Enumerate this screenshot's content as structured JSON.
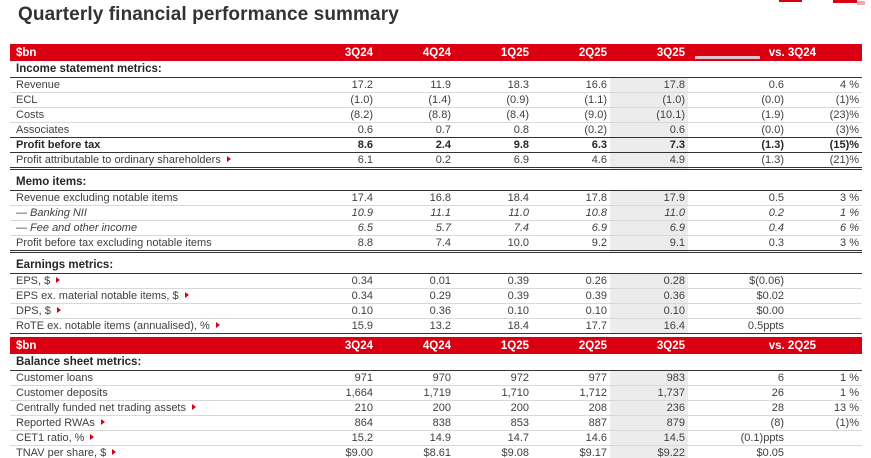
{
  "page": {
    "title": "Quarterly financial performance summary"
  },
  "colors": {
    "brand_red": "#DB0011",
    "header_text": "#FFFFFF",
    "column_highlight": "#ECECEC",
    "divider_gray": "#D9D9D9",
    "line_black": "#333333",
    "body_text": "#404040"
  },
  "tables": [
    {
      "id": "performance",
      "header": {
        "unit": "$bn",
        "quarters": [
          "3Q24",
          "4Q24",
          "1Q25",
          "2Q25",
          "3Q25"
        ],
        "vs": "vs. 3Q24"
      },
      "sections": [
        {
          "title": "Income statement metrics:",
          "rows": [
            {
              "label": "Revenue",
              "values": [
                "17.2",
                "11.9",
                "18.3",
                "16.6",
                "17.8"
              ],
              "delta": "0.6",
              "pct": "4 %",
              "divider": "gray"
            },
            {
              "label": "ECL",
              "values": [
                "(1.0)",
                "(1.4)",
                "(0.9)",
                "(1.1)",
                "(1.0)"
              ],
              "delta": "(0.0)",
              "pct": "(1)%",
              "divider": "gray"
            },
            {
              "label": "Costs",
              "values": [
                "(8.2)",
                "(8.8)",
                "(8.4)",
                "(9.0)",
                "(10.1)"
              ],
              "delta": "(1.9)",
              "pct": "(23)%",
              "divider": "gray"
            },
            {
              "label": "Associates",
              "values": [
                "0.6",
                "0.7",
                "0.8",
                "(0.2)",
                "0.6"
              ],
              "delta": "(0.0)",
              "pct": "(3)%",
              "divider": "black"
            },
            {
              "label": "Profit before tax",
              "bold": true,
              "values": [
                "8.6",
                "2.4",
                "9.8",
                "6.3",
                "7.3"
              ],
              "delta": "(1.3)",
              "pct": "(15)%",
              "divider": "black"
            },
            {
              "label": "Profit attributable to ordinary shareholders",
              "marker": true,
              "values": [
                "6.1",
                "0.2",
                "6.9",
                "4.6",
                "4.9"
              ],
              "delta": "(1.3)",
              "pct": "(21)%",
              "divider": "double"
            }
          ]
        },
        {
          "title": "Memo items:",
          "rows": [
            {
              "label": "Revenue excluding notable items",
              "values": [
                "17.4",
                "16.8",
                "18.4",
                "17.8",
                "17.9"
              ],
              "delta": "0.5",
              "pct": "3 %",
              "divider": "gray"
            },
            {
              "label": "— Banking NII",
              "italic": true,
              "values": [
                "10.9",
                "11.1",
                "11.0",
                "10.8",
                "11.0"
              ],
              "delta": "0.2",
              "pct": "1 %",
              "divider": "gray"
            },
            {
              "label": "— Fee and other income",
              "italic": true,
              "values": [
                "6.5",
                "5.7",
                "7.4",
                "6.9",
                "6.9"
              ],
              "delta": "0.4",
              "pct": "6 %",
              "divider": "gray"
            },
            {
              "label": "Profit before tax excluding notable items",
              "values": [
                "8.8",
                "7.4",
                "10.0",
                "9.2",
                "9.1"
              ],
              "delta": "0.3",
              "pct": "3 %",
              "divider": "double"
            }
          ]
        },
        {
          "title": "Earnings metrics:",
          "rows": [
            {
              "label": "EPS, $",
              "marker": true,
              "values": [
                "0.34",
                "0.01",
                "0.39",
                "0.26",
                "0.28"
              ],
              "delta": "$(0.06)",
              "pct": "",
              "divider": "gray"
            },
            {
              "label": "EPS ex. material notable items, $",
              "marker": true,
              "values": [
                "0.34",
                "0.29",
                "0.39",
                "0.39",
                "0.36"
              ],
              "delta": "$0.02",
              "pct": "",
              "divider": "gray"
            },
            {
              "label": "DPS, $",
              "marker": true,
              "values": [
                "0.10",
                "0.36",
                "0.10",
                "0.10",
                "0.10"
              ],
              "delta": "$0.00",
              "pct": "",
              "divider": "gray"
            },
            {
              "label": "RoTE ex. notable items (annualised), %",
              "marker": true,
              "values": [
                "15.9",
                "13.2",
                "18.4",
                "17.7",
                "16.4"
              ],
              "delta": "0.5ppts",
              "pct": "",
              "divider": "black"
            }
          ]
        }
      ]
    },
    {
      "id": "balance-sheet",
      "header": {
        "unit": "$bn",
        "quarters": [
          "3Q24",
          "4Q24",
          "1Q25",
          "2Q25",
          "3Q25"
        ],
        "vs": "vs. 2Q25"
      },
      "sections": [
        {
          "title": "Balance sheet metrics:",
          "rows": [
            {
              "label": "Customer loans",
              "values": [
                "971",
                "970",
                "972",
                "977",
                "983"
              ],
              "delta": "6",
              "pct": "1 %",
              "divider": "gray"
            },
            {
              "label": "Customer deposits",
              "values": [
                "1,664",
                "1,719",
                "1,710",
                "1,712",
                "1,737"
              ],
              "delta": "26",
              "pct": "1 %",
              "divider": "gray"
            },
            {
              "label": "Centrally funded net trading assets",
              "marker": true,
              "values": [
                "210",
                "200",
                "200",
                "208",
                "236"
              ],
              "delta": "28",
              "pct": "13 %",
              "divider": "gray"
            },
            {
              "label": "Reported RWAs",
              "marker": true,
              "values": [
                "864",
                "838",
                "853",
                "887",
                "879"
              ],
              "delta": "(8)",
              "pct": "(1)%",
              "divider": "gray"
            },
            {
              "label": "CET1 ratio, %",
              "marker": true,
              "values": [
                "15.2",
                "14.9",
                "14.7",
                "14.6",
                "14.5"
              ],
              "delta": "(0.1)ppts",
              "pct": "",
              "divider": "gray"
            },
            {
              "label": "TNAV per share, $",
              "marker": true,
              "values": [
                "$9.00",
                "$8.61",
                "$9.08",
                "$9.17",
                "$9.22"
              ],
              "delta": "$0.05",
              "pct": "",
              "divider": "black"
            }
          ]
        }
      ]
    }
  ]
}
